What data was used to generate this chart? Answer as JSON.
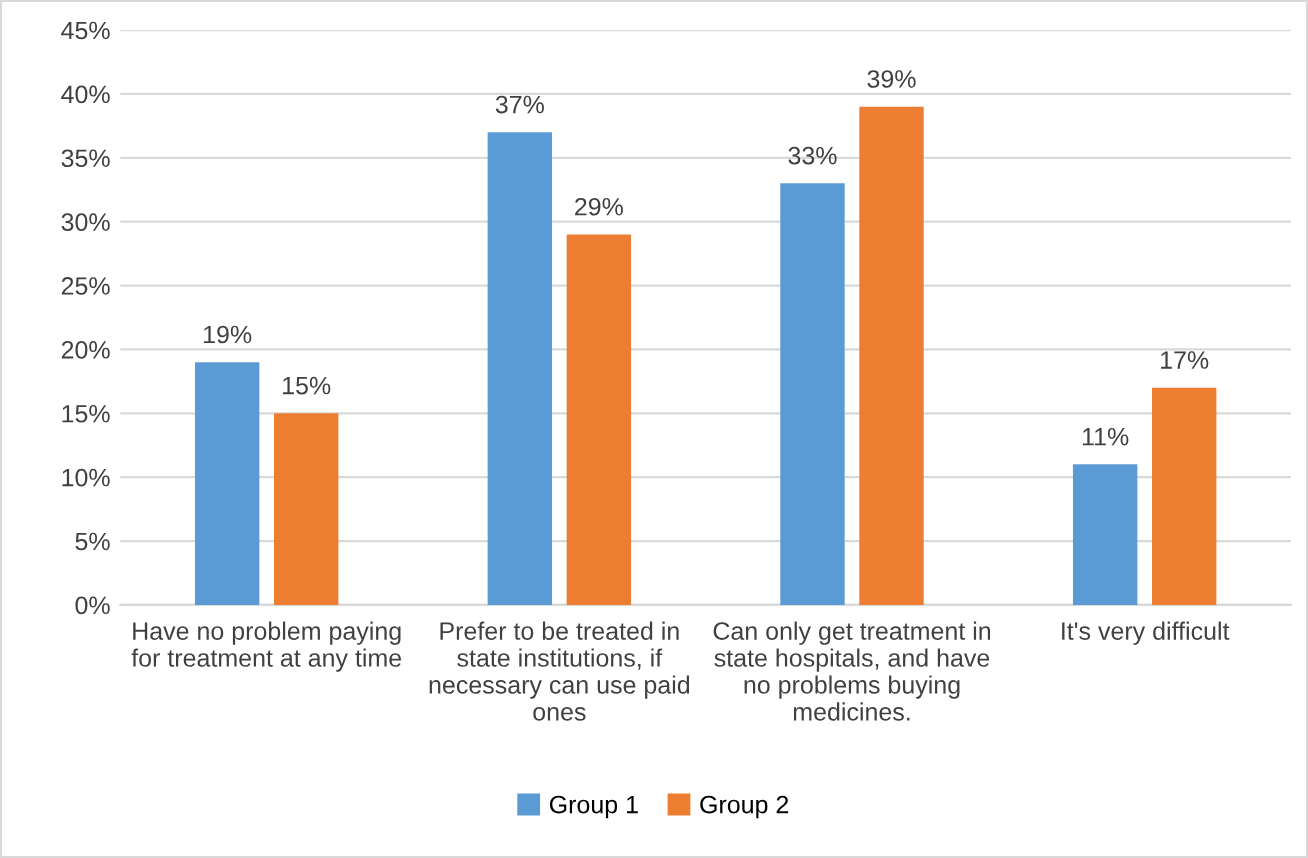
{
  "chart_data": {
    "type": "bar",
    "categories": [
      "Have no problem paying\nfor treatment at any time",
      "Prefer to be treated in\nstate institutions, if\nnecessary can use paid\nones",
      "Can only get treatment in\nstate hospitals, and have\nno problems buying\nmedicines.",
      "It's very difficult"
    ],
    "series": [
      {
        "name": "Group 1",
        "color": "#5b9bd5",
        "values": [
          19,
          37,
          33,
          11
        ],
        "value_labels": [
          "19%",
          "37%",
          "33%",
          "11%"
        ]
      },
      {
        "name": "Group 2",
        "color": "#ed7d31",
        "values": [
          15,
          29,
          39,
          17
        ],
        "value_labels": [
          "15%",
          "29%",
          "39%",
          "17%"
        ]
      }
    ],
    "ylim": [
      0,
      45
    ],
    "yticks": [
      {
        "value": 0,
        "label": "0%"
      },
      {
        "value": 5,
        "label": "5%"
      },
      {
        "value": 10,
        "label": "10%"
      },
      {
        "value": 15,
        "label": "15%"
      },
      {
        "value": 20,
        "label": "20%"
      },
      {
        "value": 25,
        "label": "25%"
      },
      {
        "value": 30,
        "label": "30%"
      },
      {
        "value": 35,
        "label": "35%"
      },
      {
        "value": 40,
        "label": "40%"
      },
      {
        "value": 45,
        "label": "45%"
      }
    ],
    "grid": "y",
    "legend": "bottom"
  }
}
